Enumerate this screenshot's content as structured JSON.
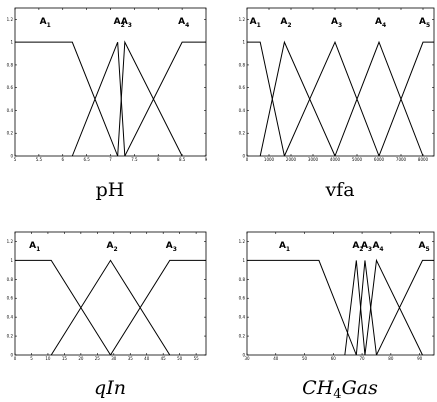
{
  "chart_data": [
    {
      "type": "line",
      "caption": "pH",
      "caption_style": "roman",
      "x_ticks": [
        "5",
        "5.5",
        "6",
        "6.5",
        "7",
        "7.5",
        "8",
        "8.5",
        "9"
      ],
      "y_ticks": [
        "0",
        "0.2",
        "0.4",
        "0.6",
        "0.8",
        "1",
        "1.2"
      ],
      "xlim": [
        5,
        9
      ],
      "ylim": [
        0,
        1.3
      ],
      "grid": false,
      "series": [
        {
          "label": "A",
          "sub": "1",
          "x": [
            5,
            6.2,
            7.15
          ],
          "y": [
            1,
            1,
            0
          ]
        },
        {
          "label": "A",
          "sub": "2",
          "x": [
            6.2,
            7.15,
            7.3
          ],
          "y": [
            0,
            1,
            0
          ]
        },
        {
          "label": "A",
          "sub": "3",
          "x": [
            7.15,
            7.3,
            8.5
          ],
          "y": [
            0,
            1,
            0
          ]
        },
        {
          "label": "A",
          "sub": "4",
          "x": [
            7.3,
            8.5,
            9
          ],
          "y": [
            0,
            1,
            1
          ]
        }
      ]
    },
    {
      "type": "line",
      "caption": "vfa",
      "caption_style": "roman",
      "x_ticks": [
        "0",
        "1000",
        "2000",
        "3000",
        "4000",
        "5000",
        "6000",
        "7000",
        "8000"
      ],
      "y_ticks": [
        "0",
        "0.2",
        "0.4",
        "0.6",
        "0.8",
        "1",
        "1.2"
      ],
      "xlim": [
        0,
        8500
      ],
      "ylim": [
        0,
        1.3
      ],
      "grid": false,
      "series": [
        {
          "label": "A",
          "sub": "1",
          "x": [
            0,
            600,
            1700
          ],
          "y": [
            1,
            1,
            0
          ]
        },
        {
          "label": "A",
          "sub": "2",
          "x": [
            600,
            1700,
            4000
          ],
          "y": [
            0,
            1,
            0
          ]
        },
        {
          "label": "A",
          "sub": "3",
          "x": [
            1700,
            4000,
            6000
          ],
          "y": [
            0,
            1,
            0
          ]
        },
        {
          "label": "A",
          "sub": "4",
          "x": [
            4000,
            6000,
            8000
          ],
          "y": [
            0,
            1,
            0
          ]
        },
        {
          "label": "A",
          "sub": "5",
          "x": [
            6000,
            8000,
            8500
          ],
          "y": [
            0,
            1,
            1
          ]
        }
      ]
    },
    {
      "type": "line",
      "caption": "qIn",
      "caption_style": "italic",
      "x_ticks": [
        "0",
        "5",
        "10",
        "15",
        "20",
        "25",
        "30",
        "35",
        "40",
        "45",
        "50",
        "55"
      ],
      "y_ticks": [
        "0",
        "0.2",
        "0.4",
        "0.6",
        "0.8",
        "1",
        "1.2"
      ],
      "xlim": [
        0,
        58
      ],
      "ylim": [
        0,
        1.3
      ],
      "grid": false,
      "series": [
        {
          "label": "A",
          "sub": "1",
          "x": [
            0,
            11,
            29
          ],
          "y": [
            1,
            1,
            0
          ]
        },
        {
          "label": "A",
          "sub": "2",
          "x": [
            11,
            29,
            47
          ],
          "y": [
            0,
            1,
            0
          ]
        },
        {
          "label": "A",
          "sub": "3",
          "x": [
            29,
            47,
            58
          ],
          "y": [
            0,
            1,
            1
          ]
        }
      ]
    },
    {
      "type": "line",
      "caption": "CH",
      "caption_sub": "4",
      "caption_rest": "Gas",
      "caption_style": "italic",
      "x_ticks": [
        "30",
        "40",
        "50",
        "60",
        "70",
        "80",
        "90"
      ],
      "y_ticks": [
        "0",
        "0.2",
        "0.4",
        "0.6",
        "0.8",
        "1",
        "1.2"
      ],
      "xlim": [
        30,
        95
      ],
      "ylim": [
        0,
        1.3
      ],
      "grid": false,
      "series": [
        {
          "label": "A",
          "sub": "1",
          "x": [
            30,
            55,
            68
          ],
          "y": [
            1,
            1,
            0
          ]
        },
        {
          "label": "A",
          "sub": "2",
          "x": [
            64,
            68,
            71
          ],
          "y": [
            0,
            1,
            0
          ]
        },
        {
          "label": "A",
          "sub": "3",
          "x": [
            68,
            71,
            75
          ],
          "y": [
            0,
            1,
            0
          ]
        },
        {
          "label": "A",
          "sub": "4",
          "x": [
            71,
            75,
            91
          ],
          "y": [
            0,
            1,
            0
          ]
        },
        {
          "label": "A",
          "sub": "5",
          "x": [
            75,
            91,
            95
          ],
          "y": [
            0,
            1,
            1
          ]
        }
      ]
    }
  ]
}
